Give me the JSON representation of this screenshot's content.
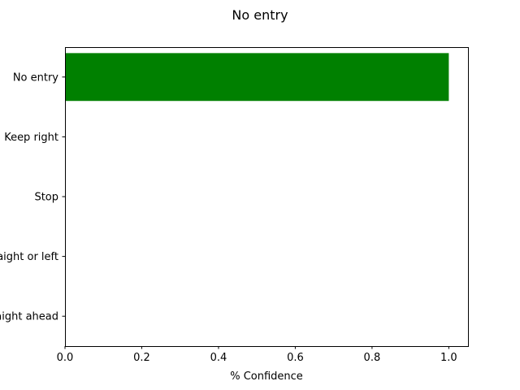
{
  "chart_data": {
    "type": "bar",
    "orientation": "horizontal",
    "title": "No entry",
    "xlabel": "% Confidence",
    "ylabel": "",
    "categories": [
      "No entry",
      "Keep right",
      "Stop",
      "Go straight or left",
      "Go straight ahead"
    ],
    "values": [
      1.0,
      0.0,
      0.0,
      0.0,
      0.0
    ],
    "xlim": [
      0.0,
      1.05
    ],
    "xticks": [
      0.0,
      0.2,
      0.4,
      0.6,
      0.8,
      1.0
    ],
    "xtick_labels": [
      "0.0",
      "0.2",
      "0.4",
      "0.6",
      "0.8",
      "1.0"
    ],
    "bar_color": "#008000",
    "grid": false,
    "legend": "none"
  }
}
